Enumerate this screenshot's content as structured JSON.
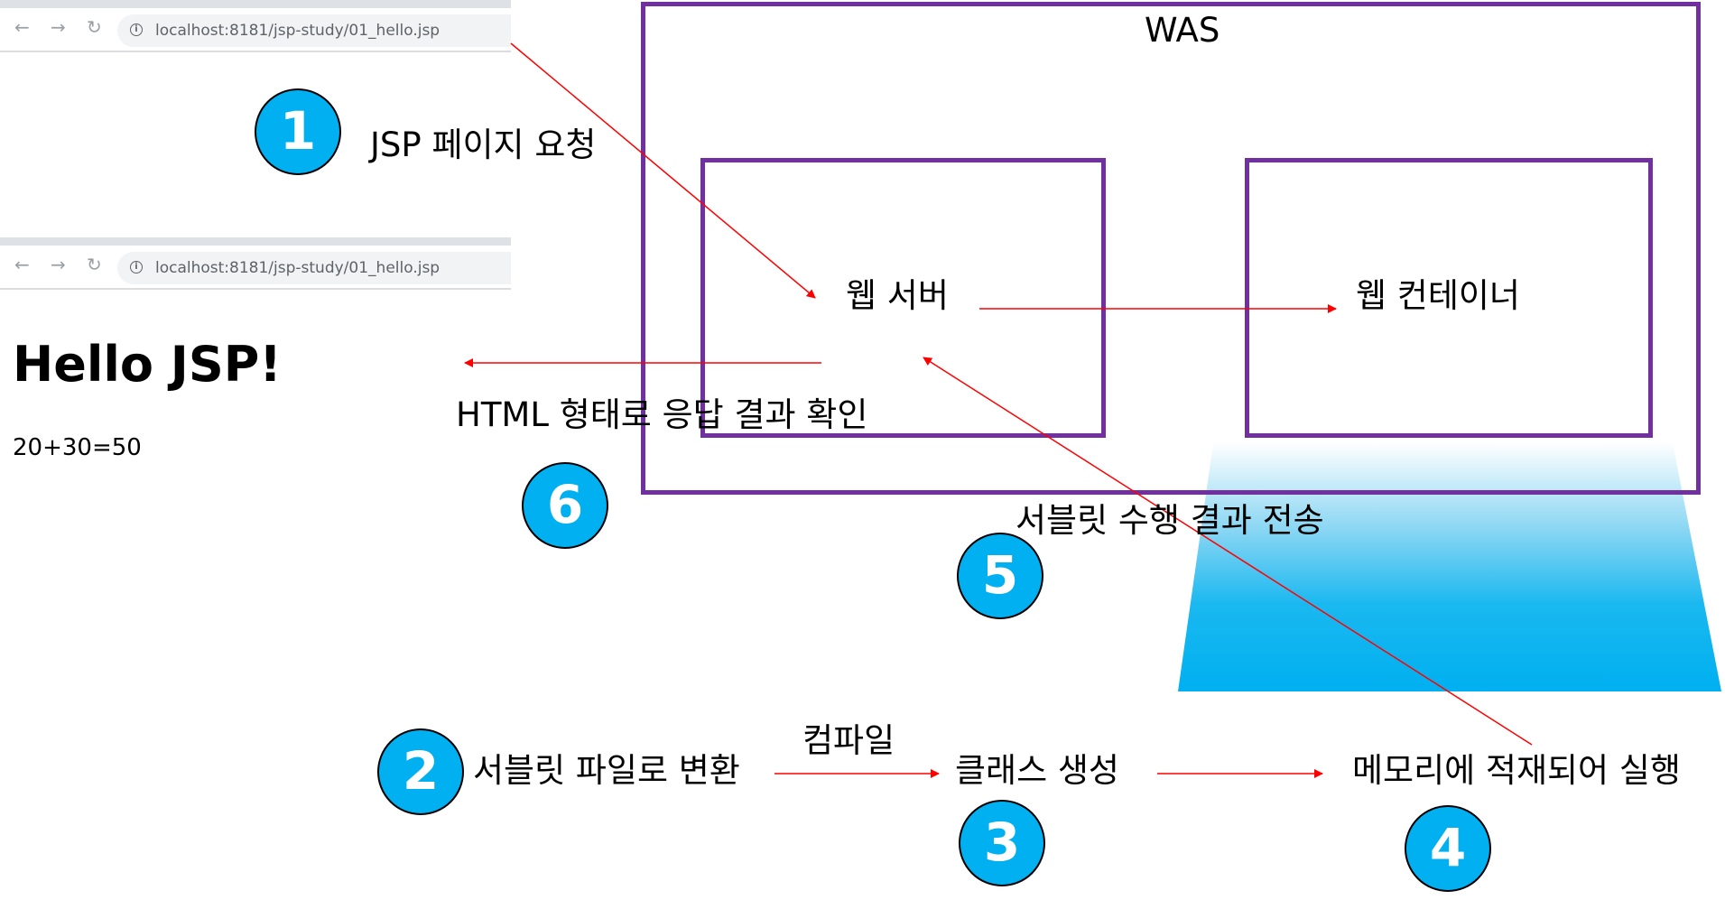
{
  "browser": {
    "back_icon": "←",
    "forward_icon": "→",
    "reload_icon": "↻",
    "info_icon": "i",
    "url": "localhost:8181/jsp-study/01_hello.jsp"
  },
  "page_output": {
    "heading": "Hello JSP!",
    "result": "20+30=50"
  },
  "was": {
    "title": "WAS",
    "web_server": "웹 서버",
    "web_container": "웹 컨테이너"
  },
  "steps": {
    "s1": {
      "number": "1",
      "label": "JSP 페이지 요청"
    },
    "s2": {
      "number": "2",
      "label": "서블릿 파일로 변환"
    },
    "compile": "컴파일",
    "s3": {
      "number": "3",
      "label": "클래스 생성"
    },
    "s4": {
      "number": "4",
      "label": "메모리에 적재되어 실행"
    },
    "s5": {
      "number": "5",
      "label": "서블릿 수행 결과 전송"
    },
    "s6": {
      "number": "6",
      "label": "HTML 형태로 응답 결과 확인"
    }
  },
  "colors": {
    "box_border": "#7030a0",
    "arrow": "#ff0000",
    "circle_fill": "#00b0f0"
  }
}
